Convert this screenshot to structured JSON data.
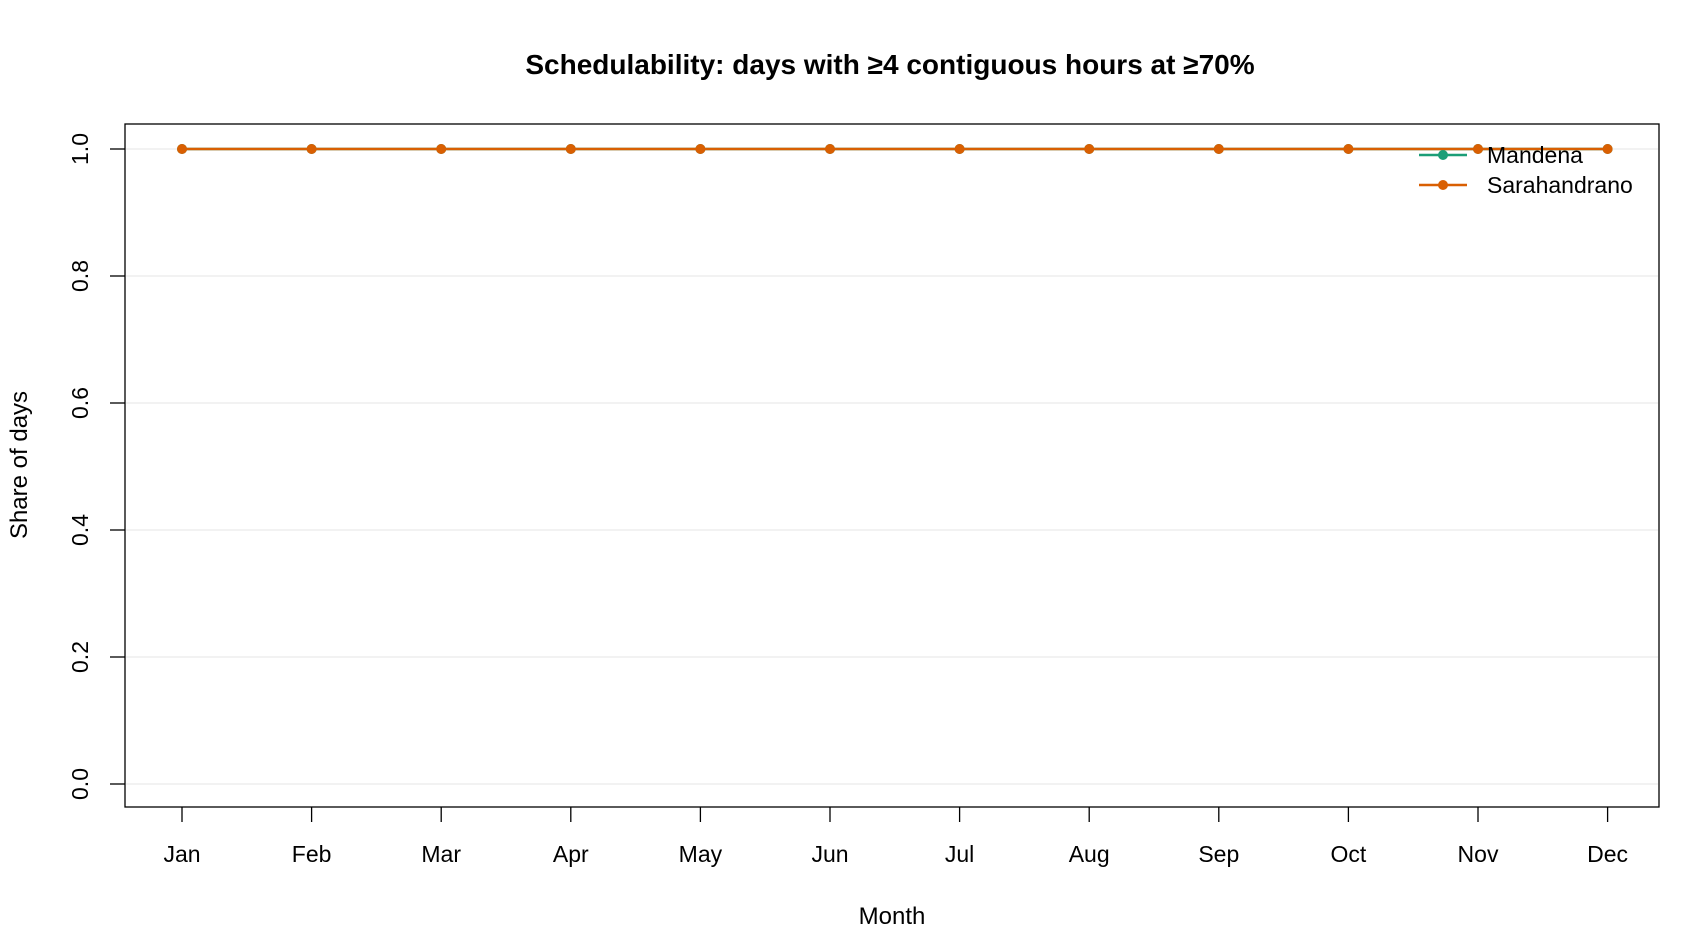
{
  "chart_data": {
    "type": "line",
    "title": "Schedulability: days with ≥4 contiguous hours at ≥70%",
    "xlabel": "Month",
    "ylabel": "Share of days",
    "categories": [
      "Jan",
      "Feb",
      "Mar",
      "Apr",
      "May",
      "Jun",
      "Jul",
      "Aug",
      "Sep",
      "Oct",
      "Nov",
      "Dec"
    ],
    "ylim": [
      0,
      1
    ],
    "yticks": [
      "0.0",
      "0.2",
      "0.4",
      "0.6",
      "0.8",
      "1.0"
    ],
    "grid": "horizontal",
    "legend_position": "top-right",
    "series": [
      {
        "name": "Mandena",
        "color": "#1b9e77",
        "values": [
          1,
          1,
          1,
          1,
          1,
          1,
          1,
          1,
          1,
          1,
          1,
          1
        ]
      },
      {
        "name": "Sarahandrano",
        "color": "#d95f02",
        "values": [
          1,
          1,
          1,
          1,
          1,
          1,
          1,
          1,
          1,
          1,
          1,
          1
        ]
      }
    ]
  }
}
